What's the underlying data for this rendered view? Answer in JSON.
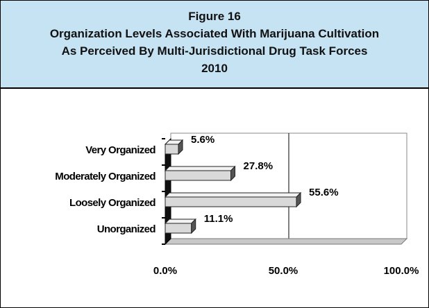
{
  "header": {
    "line1": "Figure 16",
    "line2": "Organization Levels Associated With Marijuana Cultivation",
    "line3": "As Perceived By Multi-Jurisdictional Drug Task Forces",
    "line4": "2010"
  },
  "chart_data": {
    "type": "bar",
    "orientation": "horizontal",
    "style": "3d",
    "title": "Organization Levels Associated With Marijuana Cultivation As Perceived By Multi-Jurisdictional Drug Task Forces 2010",
    "categories": [
      "Very Organized",
      "Moderately Organized",
      "Loosely Organized",
      "Unorganized"
    ],
    "values": [
      5.6,
      27.8,
      55.6,
      11.1
    ],
    "value_labels": [
      "5.6%",
      "27.8%",
      "55.6%",
      "11.1%"
    ],
    "xlim": [
      0,
      100
    ],
    "xticks": [
      "0.0%",
      "50.0%",
      "100.0%"
    ],
    "xlabel": "",
    "ylabel": "",
    "grid": true,
    "legend": "none",
    "colors": {
      "bar_face": "#d9d9d9",
      "bar_side": "#555555",
      "bar_top": "#f2f2f2",
      "floor": "#c8c8c8",
      "header_bg": "#c5e3f3"
    }
  }
}
